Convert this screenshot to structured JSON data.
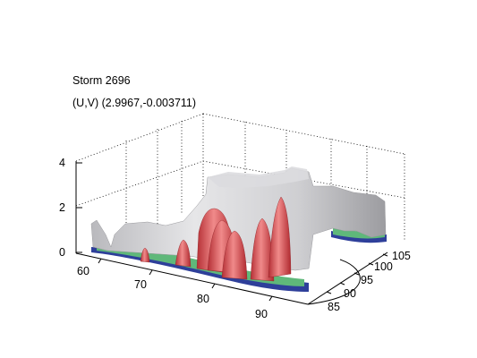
{
  "figure": {
    "title_line1": "Storm 2696",
    "title_line2": "(U,V) (2.9967,-0.003711)",
    "z_ticks": [
      "0",
      "2",
      "4"
    ],
    "x_ticks": [
      "60",
      "70",
      "80",
      "90"
    ],
    "y_ticks": [
      "85",
      "90",
      "95",
      "100",
      "105"
    ]
  },
  "colors": {
    "grey_surface": "#c9c9cc",
    "red_core": "#d9454a",
    "green_base": "#5fb87a",
    "blue_base": "#2e3f9a"
  }
}
